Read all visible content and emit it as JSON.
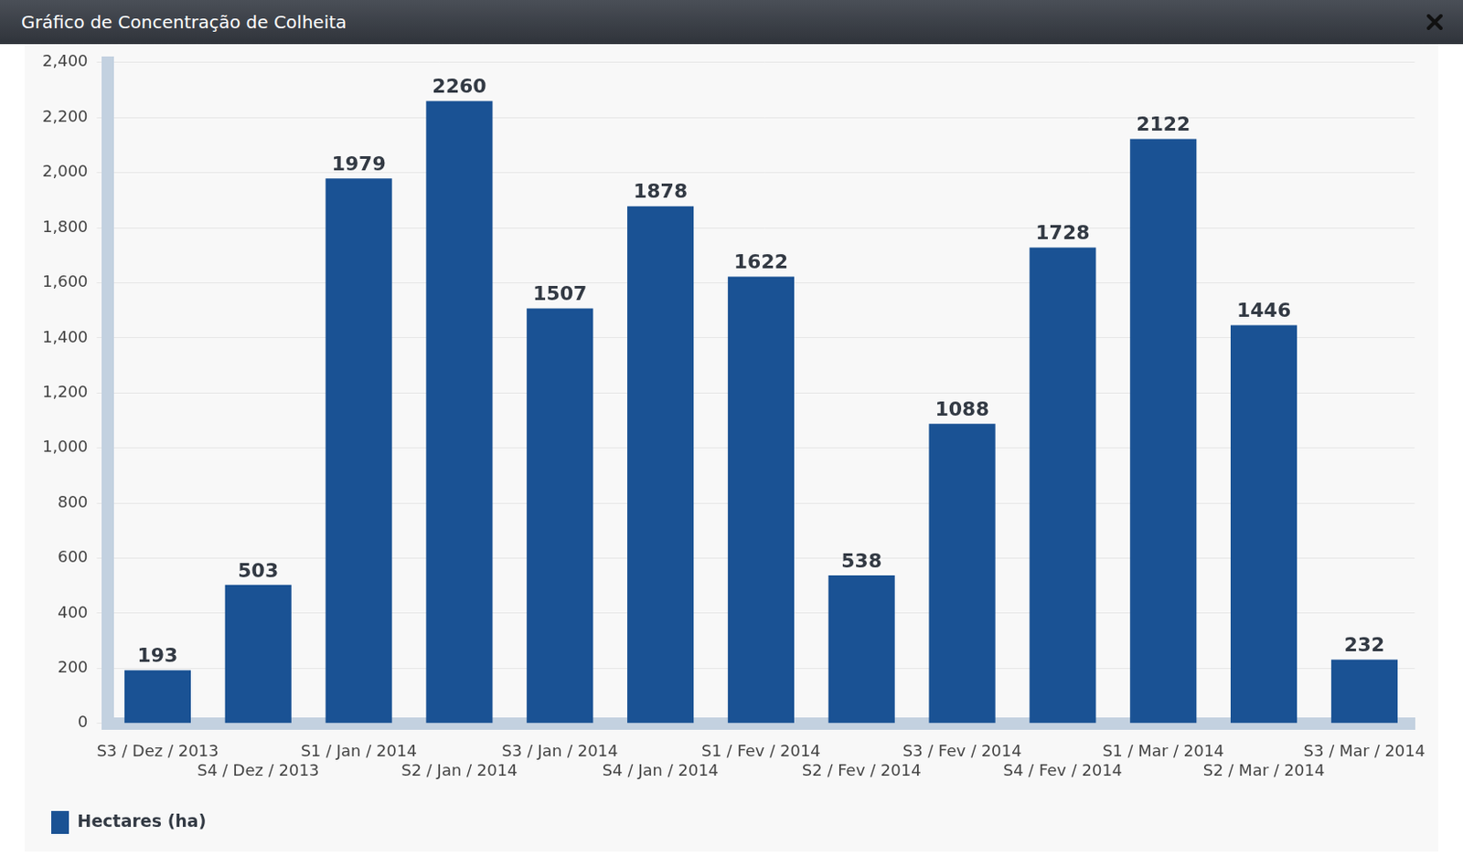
{
  "chart_data": {
    "type": "bar",
    "title": "Gráfico de Concentração de Colheita",
    "categories": [
      "S3 / Dez / 2013",
      "S4 / Dez / 2013",
      "S1 / Jan / 2014",
      "S2 / Jan / 2014",
      "S3 / Jan / 2014",
      "S4 / Jan / 2014",
      "S1 / Fev / 2014",
      "S2 / Fev / 2014",
      "S3 / Fev / 2014",
      "S4 / Fev / 2014",
      "S1 / Mar / 2014",
      "S2 / Mar / 2014",
      "S3 / Mar / 2014"
    ],
    "series": [
      {
        "name": "Hectares (ha)",
        "color": "#1a5294",
        "values": [
          193,
          503,
          1979,
          2260,
          1507,
          1878,
          1622,
          538,
          1088,
          1728,
          2122,
          1446,
          232
        ]
      }
    ],
    "ylim": [
      0,
      2400
    ],
    "yticks": [
      0,
      200,
      400,
      600,
      800,
      1000,
      1200,
      1400,
      1600,
      1800,
      2000,
      2200,
      2400
    ],
    "grid": true,
    "data_labels": true,
    "legend": "bottom-left"
  }
}
